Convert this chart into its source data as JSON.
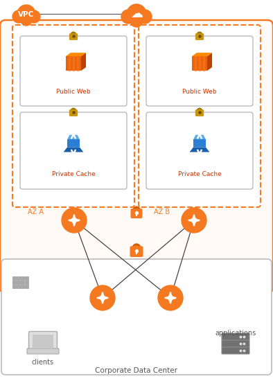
{
  "bg_color": "#ffffff",
  "orange": "#F47920",
  "orange_dark": "#D45F00",
  "orange_mid": "#E8720A",
  "orange_fill": "#F47920",
  "gold": "#C8960C",
  "gold_body": "#D4A017",
  "gold_dark": "#8B6000",
  "blue_dark": "#1A5FAB",
  "blue_mid": "#2A7ED4",
  "blue_light": "#5AAAE8",
  "gray": "#666666",
  "gray_light": "#bbbbbb",
  "gray_med": "#999999",
  "dashed_orange": "#F47920",
  "vpc_bg": "#FFFAF5",
  "vpc_label": "VPC",
  "az_a_label": "AZ A",
  "az_b_label": "AZ B",
  "pub_web_label": "Public Web",
  "priv_cache_label": "Private Cache",
  "clients_label": "clients",
  "apps_label": "applications",
  "corp_dc_label": "Corporate Data Center",
  "figsize": [
    3.94,
    5.5
  ],
  "dpi": 100
}
